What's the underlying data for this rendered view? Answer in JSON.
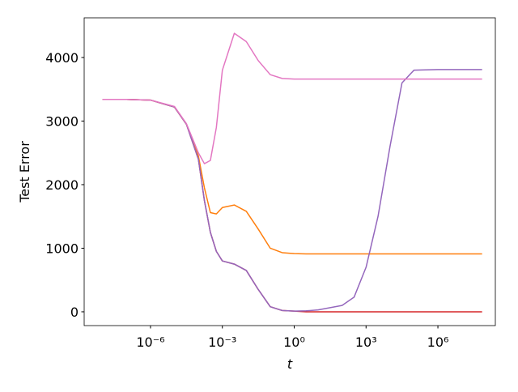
{
  "chart_data": {
    "type": "line",
    "xlabel": "t",
    "ylabel": "Test Error",
    "xscale": "log",
    "x": [
      1e-08,
      1e-07,
      1e-06,
      1e-05,
      3.16e-05,
      0.0001,
      0.000178,
      0.000316,
      0.000562,
      0.001,
      0.00316,
      0.01,
      0.0316,
      0.1,
      0.316,
      1,
      3.16,
      10,
      100,
      316,
      1000,
      3160,
      10000,
      31600,
      100000,
      1000000,
      10000000,
      70000000
    ],
    "series": [
      {
        "name": "red",
        "color": "#d62728",
        "values": [
          3340,
          3340,
          3330,
          3220,
          2950,
          2400,
          1750,
          1250,
          950,
          800,
          750,
          650,
          350,
          80,
          20,
          10,
          0,
          0,
          0,
          0,
          0,
          0,
          0,
          0,
          0,
          0,
          0,
          0
        ]
      },
      {
        "name": "orange",
        "color": "#ff7f0e",
        "values": [
          3340,
          3340,
          3330,
          3220,
          2950,
          2450,
          1950,
          1560,
          1540,
          1640,
          1680,
          1580,
          1300,
          1000,
          930,
          915,
          910,
          910,
          910,
          910,
          910,
          910,
          910,
          910,
          910,
          910,
          910,
          910
        ]
      },
      {
        "name": "purple",
        "color": "#9467bd",
        "values": [
          3340,
          3340,
          3330,
          3220,
          2950,
          2400,
          1750,
          1250,
          950,
          800,
          750,
          650,
          350,
          80,
          20,
          10,
          15,
          30,
          100,
          230,
          700,
          1500,
          2600,
          3600,
          3800,
          3810,
          3810,
          3810
        ]
      },
      {
        "name": "pink",
        "color": "#e377c2",
        "values": [
          3340,
          3340,
          3330,
          3230,
          2960,
          2500,
          2330,
          2380,
          2900,
          3800,
          4380,
          4250,
          3950,
          3730,
          3670,
          3660,
          3660,
          3660,
          3660,
          3660,
          3660,
          3660,
          3660,
          3660,
          3660,
          3660,
          3660,
          3660
        ]
      }
    ],
    "xlim": [
      1.7e-09,
      250000000.0
    ],
    "ylim": [
      -217,
      4624
    ],
    "xticks": [
      {
        "value": 1e-06,
        "label": "10⁻⁶"
      },
      {
        "value": 0.001,
        "label": "10⁻³"
      },
      {
        "value": 1,
        "label": "10⁰"
      },
      {
        "value": 1000,
        "label": "10³"
      },
      {
        "value": 1000000,
        "label": "10⁶"
      }
    ],
    "yticks": [
      0,
      1000,
      2000,
      3000,
      4000
    ],
    "grid": false
  }
}
